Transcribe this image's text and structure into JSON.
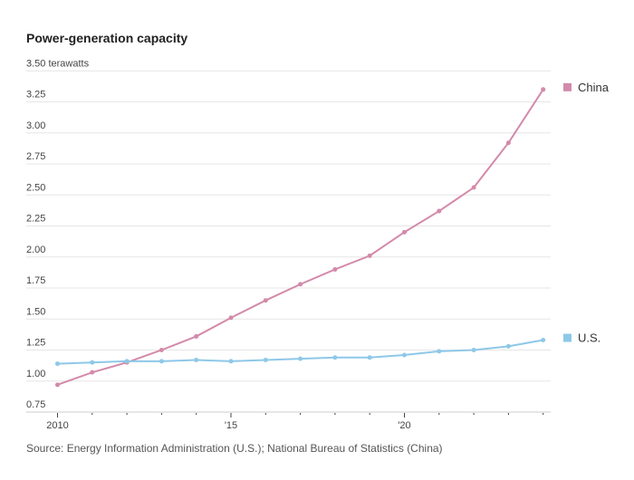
{
  "chart_data": {
    "type": "line",
    "title": "Power-generation capacity",
    "ylabel_unit": "terawatts",
    "source": "Source: Energy Information Administration (U.S.); National Bureau of Statistics (China)",
    "x": [
      2010,
      2011,
      2012,
      2013,
      2014,
      2015,
      2016,
      2017,
      2018,
      2019,
      2020,
      2021,
      2022,
      2023,
      2024
    ],
    "x_tick_labels": [
      {
        "value": 2010,
        "label": "2010"
      },
      {
        "value": 2015,
        "label": "'15"
      },
      {
        "value": 2020,
        "label": "'20"
      }
    ],
    "ylim": [
      0.75,
      3.5
    ],
    "y_ticks": [
      0.75,
      1.0,
      1.25,
      1.5,
      1.75,
      2.0,
      2.25,
      2.5,
      2.75,
      3.0,
      3.25,
      3.5
    ],
    "y_tick_labels": [
      "0.75",
      "1.00",
      "1.25",
      "1.50",
      "1.75",
      "2.00",
      "2.25",
      "2.50",
      "2.75",
      "3.00",
      "3.25",
      "3.50 terawatts"
    ],
    "grid": true,
    "legend_placement": "right, at line ends",
    "series": [
      {
        "name": "China",
        "color": "#d38aaa",
        "values": [
          0.97,
          1.07,
          1.15,
          1.25,
          1.36,
          1.51,
          1.65,
          1.78,
          1.9,
          2.01,
          2.2,
          2.37,
          2.56,
          2.92,
          3.35
        ]
      },
      {
        "name": "U.S.",
        "color": "#8ec8e8",
        "values": [
          1.14,
          1.15,
          1.16,
          1.16,
          1.17,
          1.16,
          1.17,
          1.18,
          1.19,
          1.19,
          1.21,
          1.24,
          1.25,
          1.28,
          1.33
        ]
      }
    ]
  }
}
